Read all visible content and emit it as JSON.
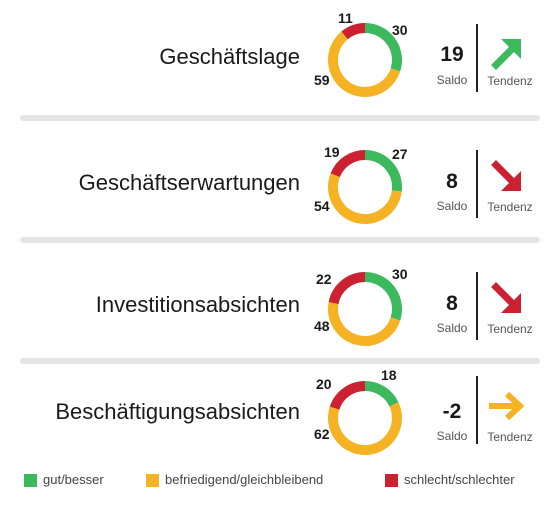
{
  "colors": {
    "gut": "#3cb95c",
    "befriedigend": "#f5b324",
    "schlecht": "#cc2131"
  },
  "saldo_label": "Saldo",
  "tendenz_label": "Tendenz",
  "legend": [
    {
      "label": "gut/besser",
      "color": "#3cb95c"
    },
    {
      "label": "befriedigend/gleichbleibend",
      "color": "#f5b324"
    },
    {
      "label": "schlecht/schlechter",
      "color": "#cc2131"
    }
  ],
  "chart_data": [
    {
      "type": "pie",
      "title": "Geschäftslage",
      "categories": [
        "gut/besser",
        "befriedigend/gleichbleibend",
        "schlecht/schlechter"
      ],
      "values": [
        30,
        59,
        11
      ],
      "saldo": "19",
      "tendenz": "up"
    },
    {
      "type": "pie",
      "title": "Geschäftserwartungen",
      "categories": [
        "gut/besser",
        "befriedigend/gleichbleibend",
        "schlecht/schlechter"
      ],
      "values": [
        27,
        54,
        19
      ],
      "saldo": "8",
      "tendenz": "down"
    },
    {
      "type": "pie",
      "title": "Investitionsabsichten",
      "categories": [
        "gut/besser",
        "befriedigend/gleichbleibend",
        "schlecht/schlechter"
      ],
      "values": [
        30,
        48,
        22
      ],
      "saldo": "8",
      "tendenz": "down"
    },
    {
      "type": "pie",
      "title": "Beschäftigungsabsichten",
      "categories": [
        "gut/besser",
        "befriedigend/gleichbleibend",
        "schlecht/schlechter"
      ],
      "values": [
        18,
        62,
        20
      ],
      "saldo": "-2",
      "tendenz": "flat"
    }
  ]
}
